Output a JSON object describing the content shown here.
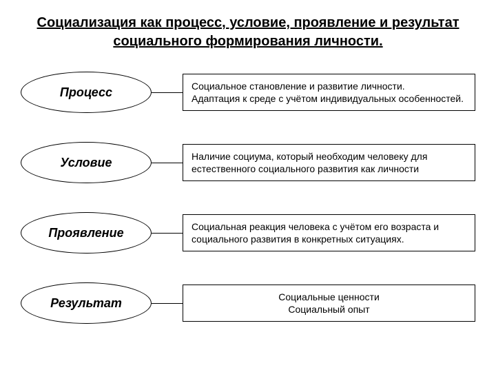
{
  "title": "Социализация как процесс, условие, проявление и результат социального формирования личности.",
  "rows": [
    {
      "label": "Процесс",
      "desc_line1": "Социальное становление и развитие личности.",
      "desc_line2": "Адаптация к среде с учётом индивидуальных особенностей.",
      "center": false
    },
    {
      "label": "Условие",
      "desc_line1": "Наличие социума, который необходим человеку для",
      "desc_line2": "естественного социального развития как личности",
      "center": false
    },
    {
      "label": "Проявление",
      "desc_line1": "Социальная реакция человека с учётом его возраста и",
      "desc_line2": "социального развития в конкретных ситуациях.",
      "center": false
    },
    {
      "label": "Результат",
      "desc_line1": "Социальные ценности",
      "desc_line2": "Социальный опыт",
      "center": true
    }
  ],
  "styling": {
    "type": "infographic",
    "background_color": "#ffffff",
    "text_color": "#000000",
    "border_color": "#000000",
    "title_fontsize": 20,
    "title_weight": "bold",
    "title_underline": true,
    "ellipse_width": 190,
    "ellipse_height": 60,
    "ellipse_font_italic": true,
    "ellipse_font_weight": "bold",
    "ellipse_fontsize": 18,
    "box_fontsize": 14,
    "connector_length": 45,
    "row_gap": 42
  }
}
